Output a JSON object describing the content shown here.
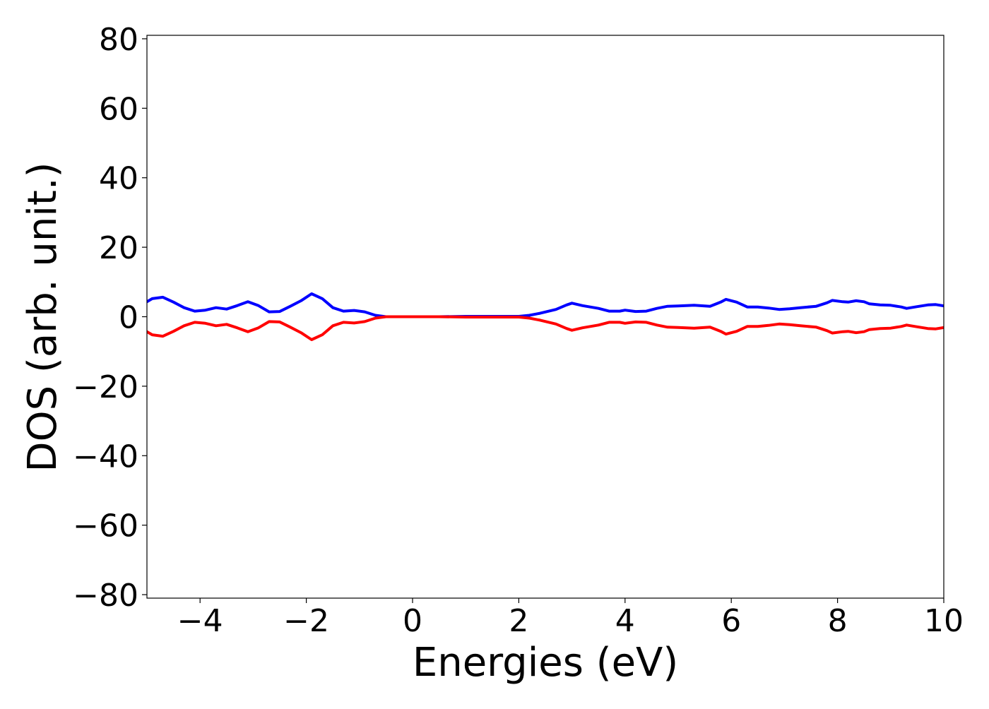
{
  "chart_data": {
    "type": "line",
    "title": "",
    "xlabel": "Energies (eV)",
    "ylabel": "DOS (arb. unit.)",
    "xlim": [
      -5,
      10
    ],
    "ylim": [
      -81,
      81
    ],
    "xticks": [
      {
        "value": -4,
        "label": "−4"
      },
      {
        "value": -2,
        "label": "−2"
      },
      {
        "value": 0,
        "label": "0"
      },
      {
        "value": 2,
        "label": "2"
      },
      {
        "value": 4,
        "label": "4"
      },
      {
        "value": 6,
        "label": "6"
      },
      {
        "value": 8,
        "label": "8"
      },
      {
        "value": 10,
        "label": "10"
      }
    ],
    "yticks": [
      {
        "value": 80,
        "label": "80"
      },
      {
        "value": 60,
        "label": "60"
      },
      {
        "value": 40,
        "label": "40"
      },
      {
        "value": 20,
        "label": "20"
      },
      {
        "value": 0,
        "label": "0"
      },
      {
        "value": -20,
        "label": "−20"
      },
      {
        "value": -40,
        "label": "−40"
      },
      {
        "value": -60,
        "label": "−60"
      },
      {
        "value": -80,
        "label": "−80"
      }
    ],
    "grid": false,
    "legend": "none",
    "series": [
      {
        "color": "#0000ff",
        "points": [
          [
            -5.0,
            4.3
          ],
          [
            -4.9,
            5.2
          ],
          [
            -4.7,
            5.6
          ],
          [
            -4.5,
            4.2
          ],
          [
            -4.3,
            2.6
          ],
          [
            -4.1,
            1.6
          ],
          [
            -3.9,
            1.9
          ],
          [
            -3.7,
            2.6
          ],
          [
            -3.5,
            2.2
          ],
          [
            -3.3,
            3.2
          ],
          [
            -3.1,
            4.3
          ],
          [
            -2.9,
            3.2
          ],
          [
            -2.7,
            1.4
          ],
          [
            -2.5,
            1.5
          ],
          [
            -2.3,
            3.0
          ],
          [
            -2.1,
            4.6
          ],
          [
            -1.9,
            6.6
          ],
          [
            -1.7,
            5.2
          ],
          [
            -1.5,
            2.6
          ],
          [
            -1.3,
            1.6
          ],
          [
            -1.1,
            1.8
          ],
          [
            -0.9,
            1.4
          ],
          [
            -0.7,
            0.4
          ],
          [
            -0.5,
            0.0
          ],
          [
            0.0,
            0.0
          ],
          [
            0.5,
            0.0
          ],
          [
            1.0,
            0.1
          ],
          [
            1.5,
            0.1
          ],
          [
            2.0,
            0.1
          ],
          [
            2.2,
            0.4
          ],
          [
            2.4,
            1.0
          ],
          [
            2.7,
            2.1
          ],
          [
            2.9,
            3.4
          ],
          [
            3.0,
            3.9
          ],
          [
            3.2,
            3.2
          ],
          [
            3.5,
            2.4
          ],
          [
            3.7,
            1.6
          ],
          [
            3.9,
            1.6
          ],
          [
            4.0,
            1.9
          ],
          [
            4.2,
            1.5
          ],
          [
            4.4,
            1.6
          ],
          [
            4.6,
            2.4
          ],
          [
            4.8,
            3.0
          ],
          [
            5.0,
            3.1
          ],
          [
            5.3,
            3.3
          ],
          [
            5.6,
            3.0
          ],
          [
            5.8,
            4.2
          ],
          [
            5.9,
            5.0
          ],
          [
            6.1,
            4.2
          ],
          [
            6.3,
            2.8
          ],
          [
            6.5,
            2.8
          ],
          [
            6.7,
            2.5
          ],
          [
            6.9,
            2.1
          ],
          [
            7.1,
            2.3
          ],
          [
            7.3,
            2.6
          ],
          [
            7.6,
            3.0
          ],
          [
            7.8,
            4.0
          ],
          [
            7.9,
            4.7
          ],
          [
            8.1,
            4.3
          ],
          [
            8.2,
            4.2
          ],
          [
            8.35,
            4.6
          ],
          [
            8.5,
            4.3
          ],
          [
            8.6,
            3.7
          ],
          [
            8.8,
            3.4
          ],
          [
            9.0,
            3.3
          ],
          [
            9.2,
            2.8
          ],
          [
            9.3,
            2.4
          ],
          [
            9.5,
            2.9
          ],
          [
            9.7,
            3.4
          ],
          [
            9.85,
            3.5
          ],
          [
            10.0,
            3.1
          ]
        ]
      },
      {
        "color": "#ff0000",
        "points": [
          [
            -5.0,
            -4.3
          ],
          [
            -4.9,
            -5.2
          ],
          [
            -4.7,
            -5.6
          ],
          [
            -4.5,
            -4.2
          ],
          [
            -4.3,
            -2.6
          ],
          [
            -4.1,
            -1.6
          ],
          [
            -3.9,
            -1.9
          ],
          [
            -3.7,
            -2.6
          ],
          [
            -3.5,
            -2.2
          ],
          [
            -3.3,
            -3.2
          ],
          [
            -3.1,
            -4.3
          ],
          [
            -2.9,
            -3.2
          ],
          [
            -2.7,
            -1.4
          ],
          [
            -2.5,
            -1.5
          ],
          [
            -2.3,
            -3.0
          ],
          [
            -2.1,
            -4.6
          ],
          [
            -1.9,
            -6.6
          ],
          [
            -1.7,
            -5.2
          ],
          [
            -1.5,
            -2.6
          ],
          [
            -1.3,
            -1.6
          ],
          [
            -1.1,
            -1.8
          ],
          [
            -0.9,
            -1.4
          ],
          [
            -0.7,
            -0.4
          ],
          [
            -0.5,
            0.0
          ],
          [
            0.0,
            0.0
          ],
          [
            0.5,
            0.0
          ],
          [
            1.0,
            -0.1
          ],
          [
            1.5,
            -0.1
          ],
          [
            2.0,
            -0.1
          ],
          [
            2.2,
            -0.4
          ],
          [
            2.4,
            -1.0
          ],
          [
            2.7,
            -2.1
          ],
          [
            2.9,
            -3.4
          ],
          [
            3.0,
            -3.9
          ],
          [
            3.2,
            -3.2
          ],
          [
            3.5,
            -2.4
          ],
          [
            3.7,
            -1.6
          ],
          [
            3.9,
            -1.6
          ],
          [
            4.0,
            -1.9
          ],
          [
            4.2,
            -1.5
          ],
          [
            4.4,
            -1.6
          ],
          [
            4.6,
            -2.4
          ],
          [
            4.8,
            -3.0
          ],
          [
            5.0,
            -3.1
          ],
          [
            5.3,
            -3.3
          ],
          [
            5.6,
            -3.0
          ],
          [
            5.8,
            -4.2
          ],
          [
            5.9,
            -5.0
          ],
          [
            6.1,
            -4.2
          ],
          [
            6.3,
            -2.8
          ],
          [
            6.5,
            -2.8
          ],
          [
            6.7,
            -2.5
          ],
          [
            6.9,
            -2.1
          ],
          [
            7.1,
            -2.3
          ],
          [
            7.3,
            -2.6
          ],
          [
            7.6,
            -3.0
          ],
          [
            7.8,
            -4.0
          ],
          [
            7.9,
            -4.7
          ],
          [
            8.1,
            -4.3
          ],
          [
            8.2,
            -4.2
          ],
          [
            8.35,
            -4.6
          ],
          [
            8.5,
            -4.3
          ],
          [
            8.6,
            -3.7
          ],
          [
            8.8,
            -3.4
          ],
          [
            9.0,
            -3.3
          ],
          [
            9.2,
            -2.8
          ],
          [
            9.3,
            -2.4
          ],
          [
            9.5,
            -2.9
          ],
          [
            9.7,
            -3.4
          ],
          [
            9.85,
            -3.5
          ],
          [
            10.0,
            -3.1
          ]
        ]
      }
    ]
  }
}
